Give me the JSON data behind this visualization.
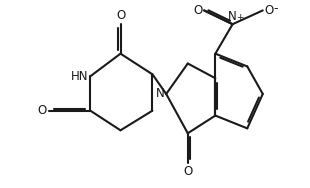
{
  "bg_color": "#ffffff",
  "line_color": "#1a1a1a",
  "line_width": 1.5,
  "font_size": 8.5,
  "xlim": [
    0.0,
    6.8
  ],
  "ylim": [
    0.8,
    5.5
  ]
}
